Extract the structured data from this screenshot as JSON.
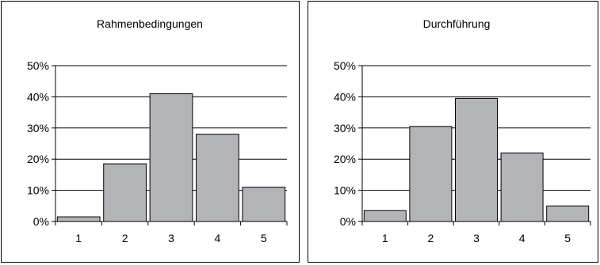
{
  "chart_data": [
    {
      "type": "bar",
      "title": "Rahmenbedingungen",
      "categories": [
        "1",
        "2",
        "3",
        "4",
        "5"
      ],
      "values": [
        1.5,
        18.5,
        41,
        28,
        11
      ],
      "unit": "%",
      "ylim": [
        0,
        50
      ],
      "yticks": [
        "0%",
        "10%",
        "20%",
        "30%",
        "40%",
        "50%"
      ],
      "grid": true,
      "bar_color": "#b3b4b8"
    },
    {
      "type": "bar",
      "title": "Durchführung",
      "categories": [
        "1",
        "2",
        "3",
        "4",
        "5"
      ],
      "values": [
        3.5,
        30.5,
        39.5,
        22,
        5
      ],
      "unit": "%",
      "ylim": [
        0,
        50
      ],
      "yticks": [
        "0%",
        "10%",
        "20%",
        "30%",
        "40%",
        "50%"
      ],
      "grid": true,
      "bar_color": "#b3b4b8"
    }
  ]
}
